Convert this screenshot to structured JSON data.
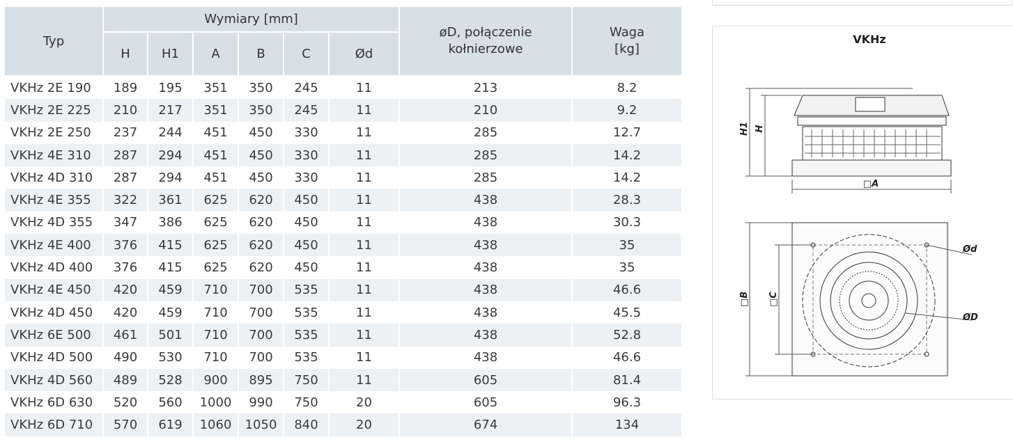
{
  "table": {
    "headers": {
      "typ": "Typ",
      "group": "Wymiary [mm]",
      "dims": [
        "H",
        "H1",
        "A",
        "B",
        "C",
        "Ød"
      ],
      "flange": "øD, połączenie kołnierzowe",
      "weight": "Waga [kg]"
    },
    "rows": [
      [
        "VKHz 2E 190",
        189,
        195,
        351,
        350,
        245,
        11,
        213,
        8.2
      ],
      [
        "VKHz 2E 225",
        210,
        217,
        351,
        350,
        245,
        11,
        210,
        9.2
      ],
      [
        "VKHz 2E 250",
        237,
        244,
        451,
        450,
        330,
        11,
        285,
        12.7
      ],
      [
        "VKHz 4E 310",
        287,
        294,
        451,
        450,
        330,
        11,
        285,
        14.2
      ],
      [
        "VKHz 4D 310",
        287,
        294,
        451,
        450,
        330,
        11,
        285,
        14.2
      ],
      [
        "VKHz 4E 355",
        322,
        361,
        625,
        620,
        450,
        11,
        438,
        28.3
      ],
      [
        "VKHz 4D 355",
        347,
        386,
        625,
        620,
        450,
        11,
        438,
        30.3
      ],
      [
        "VKHz 4E 400",
        376,
        415,
        625,
        620,
        450,
        11,
        438,
        35
      ],
      [
        "VKHz 4D 400",
        376,
        415,
        625,
        620,
        450,
        11,
        438,
        35
      ],
      [
        "VKHz 4E 450",
        420,
        459,
        710,
        700,
        535,
        11,
        438,
        46.6
      ],
      [
        "VKHz 4D 450",
        420,
        459,
        710,
        700,
        535,
        11,
        438,
        45.5
      ],
      [
        "VKHz 6E 500",
        461,
        501,
        710,
        700,
        535,
        11,
        438,
        52.8
      ],
      [
        "VKHz 4D 500",
        490,
        530,
        710,
        700,
        535,
        11,
        438,
        46.6
      ],
      [
        "VKHz 4D 560",
        489,
        528,
        900,
        895,
        750,
        11,
        605,
        81.4
      ],
      [
        "VKHz 6D 630",
        520,
        560,
        1000,
        990,
        750,
        20,
        605,
        96.3
      ],
      [
        "VKHz 6D 710",
        570,
        619,
        1060,
        1050,
        840,
        20,
        674,
        134
      ]
    ]
  },
  "diagram": {
    "title": "VKHz",
    "labels": {
      "h1": "H1",
      "h": "H",
      "a": "□A",
      "b": "□B",
      "c": "□C",
      "d": "Ød",
      "D": "ØD"
    }
  }
}
